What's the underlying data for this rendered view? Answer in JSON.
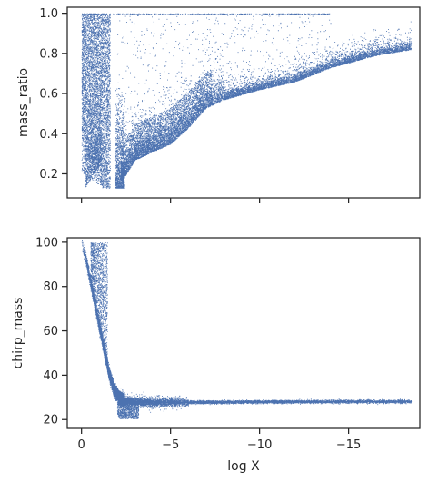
{
  "figure": {
    "xlabel": "log X"
  },
  "chart_data": [
    {
      "type": "scatter",
      "panel": "top",
      "ylabel": "mass_ratio",
      "xlabel": "",
      "x_axis": "inverted",
      "xlim": [
        0.8,
        -19.0
      ],
      "ylim": [
        0.08,
        1.03
      ],
      "xticks": [
        0,
        -5,
        -10,
        -15
      ],
      "xtick_labels_visible": false,
      "yticks": [
        0.2,
        0.4,
        0.6,
        0.8,
        1.0
      ],
      "ytick_labels": [
        "0.2",
        "0.4",
        "0.6",
        "0.8",
        "1.0"
      ],
      "marker_color": "#4c72b0",
      "grid": false,
      "structure": {
        "left_band_x": [
          0.0,
          -1.6
        ],
        "left_band_y": [
          0.13,
          1.0
        ],
        "main_branch": [
          [
            -2.3,
            0.17
          ],
          [
            -3.0,
            0.27
          ],
          [
            -4.0,
            0.31
          ],
          [
            -5.0,
            0.35
          ],
          [
            -6.0,
            0.43
          ],
          [
            -7.0,
            0.53
          ],
          [
            -8.0,
            0.57
          ],
          [
            -10.0,
            0.62
          ],
          [
            -12.0,
            0.66
          ],
          [
            -14.0,
            0.73
          ],
          [
            -16.5,
            0.79
          ],
          [
            -18.5,
            0.82
          ]
        ],
        "scattered_sparse_region": "x from -2 to -14, y 0.4 to 1.0"
      }
    },
    {
      "type": "scatter",
      "panel": "bottom",
      "ylabel": "chirp_mass",
      "xlabel": "log X",
      "x_axis": "inverted",
      "xlim": [
        0.8,
        -19.0
      ],
      "ylim": [
        16,
        102
      ],
      "xticks": [
        0,
        -5,
        -10,
        -15
      ],
      "xtick_labels": [
        "0",
        "−5",
        "−10",
        "−15"
      ],
      "yticks": [
        20,
        40,
        60,
        80,
        100
      ],
      "ytick_labels": [
        "20",
        "40",
        "60",
        "80",
        "100"
      ],
      "marker_color": "#4c72b0",
      "grid": false,
      "structure": {
        "main_curve": [
          [
            0.0,
            100
          ],
          [
            -0.3,
            90
          ],
          [
            -0.6,
            78
          ],
          [
            -0.9,
            66
          ],
          [
            -1.2,
            54
          ],
          [
            -1.5,
            42
          ],
          [
            -1.8,
            34
          ],
          [
            -2.1,
            30
          ],
          [
            -2.5,
            28.5
          ],
          [
            -4.0,
            27.8
          ],
          [
            -8.0,
            28.0
          ],
          [
            -12.0,
            28.2
          ],
          [
            -18.5,
            28.3
          ]
        ],
        "upper_scatter_x": [
          -0.5,
          -1.4
        ],
        "upper_scatter_y": [
          40,
          100
        ],
        "low_cluster": [
          -2.3,
          21
        ]
      }
    }
  ]
}
